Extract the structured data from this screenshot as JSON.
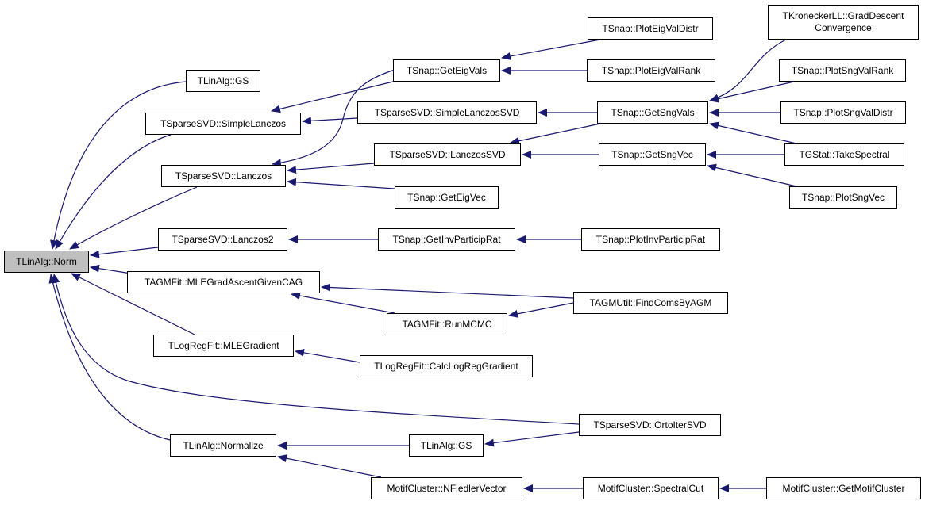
{
  "colors": {
    "edge": "#191970",
    "root_fill": "#bfbfbf",
    "node_fill": "#ffffff",
    "border": "#000000"
  },
  "nodes": [
    {
      "id": "norm",
      "label": "TLinAlg::Norm",
      "root": true
    },
    {
      "id": "gs",
      "label": "TLinAlg::GS"
    },
    {
      "id": "simplelanczos",
      "label": "TSparseSVD::SimpleLanczos"
    },
    {
      "id": "lanczos",
      "label": "TSparseSVD::Lanczos"
    },
    {
      "id": "lanczos2",
      "label": "TSparseSVD::Lanczos2"
    },
    {
      "id": "mlegagc",
      "label": "TAGMFit::MLEGradAscentGivenCAG"
    },
    {
      "id": "mlegradient",
      "label": "TLogRegFit::MLEGradient"
    },
    {
      "id": "normalize",
      "label": "TLinAlg::Normalize"
    },
    {
      "id": "geteigvals",
      "label": "TSnap::GetEigVals"
    },
    {
      "id": "simplelanczossvd",
      "label": "TSparseSVD::SimpleLanczosSVD"
    },
    {
      "id": "lanczossvd",
      "label": "TSparseSVD::LanczosSVD"
    },
    {
      "id": "geteigvec",
      "label": "TSnap::GetEigVec"
    },
    {
      "id": "getinvparticiprat",
      "label": "TSnap::GetInvParticipRat"
    },
    {
      "id": "ploteigvaldistr",
      "label": "TSnap::PlotEigValDistr"
    },
    {
      "id": "ploteigvalrank",
      "label": "TSnap::PlotEigValRank"
    },
    {
      "id": "getsngvals",
      "label": "TSnap::GetSngVals"
    },
    {
      "id": "getsngvec",
      "label": "TSnap::GetSngVec"
    },
    {
      "id": "plotinvparticiprat",
      "label": "TSnap::PlotInvParticipRat"
    },
    {
      "id": "tkronecker",
      "label": "TKroneckerLL::GradDescent\nConvergence"
    },
    {
      "id": "plotsngvalrank",
      "label": "TSnap::PlotSngValRank"
    },
    {
      "id": "plotsngvaldistr",
      "label": "TSnap::PlotSngValDistr"
    },
    {
      "id": "takespectral",
      "label": "TGStat::TakeSpectral"
    },
    {
      "id": "plotsngvec",
      "label": "TSnap::PlotSngVec"
    },
    {
      "id": "findcomsbyagm",
      "label": "TAGMUtil::FindComsByAGM"
    },
    {
      "id": "runmcmc",
      "label": "TAGMFit::RunMCMC"
    },
    {
      "id": "calclogreggradient",
      "label": "TLogRegFit::CalcLogRegGradient"
    },
    {
      "id": "ortoitersvd",
      "label": "TSparseSVD::OrtoIterSVD"
    },
    {
      "id": "gs2",
      "label": "TLinAlg::GS"
    },
    {
      "id": "nfiedlervector",
      "label": "MotifCluster::NFiedlerVector"
    },
    {
      "id": "spectralcut",
      "label": "MotifCluster::SpectralCut"
    },
    {
      "id": "getmotifcluster",
      "label": "MotifCluster::GetMotifCluster"
    }
  ],
  "edges": [
    {
      "from": "gs",
      "to": "norm"
    },
    {
      "from": "simplelanczos",
      "to": "norm"
    },
    {
      "from": "lanczos",
      "to": "norm"
    },
    {
      "from": "lanczos2",
      "to": "norm"
    },
    {
      "from": "mlegagc",
      "to": "norm"
    },
    {
      "from": "mlegradient",
      "to": "norm"
    },
    {
      "from": "ortoitersvd",
      "to": "norm"
    },
    {
      "from": "normalize",
      "to": "norm"
    },
    {
      "from": "geteigvals",
      "to": "simplelanczos"
    },
    {
      "from": "simplelanczossvd",
      "to": "simplelanczos"
    },
    {
      "from": "geteigvals",
      "to": "lanczos"
    },
    {
      "from": "lanczossvd",
      "to": "lanczos"
    },
    {
      "from": "geteigvec",
      "to": "lanczos"
    },
    {
      "from": "getinvparticiprat",
      "to": "lanczos2"
    },
    {
      "from": "findcomsbyagm",
      "to": "mlegagc"
    },
    {
      "from": "runmcmc",
      "to": "mlegagc"
    },
    {
      "from": "calclogreggradient",
      "to": "mlegradient"
    },
    {
      "from": "gs2",
      "to": "normalize"
    },
    {
      "from": "nfiedlervector",
      "to": "normalize"
    },
    {
      "from": "ploteigvaldistr",
      "to": "geteigvals"
    },
    {
      "from": "ploteigvalrank",
      "to": "geteigvals"
    },
    {
      "from": "getsngvals",
      "to": "simplelanczossvd"
    },
    {
      "from": "getsngvals",
      "to": "lanczossvd"
    },
    {
      "from": "getsngvec",
      "to": "lanczossvd"
    },
    {
      "from": "tkronecker",
      "to": "getsngvals"
    },
    {
      "from": "plotsngvalrank",
      "to": "getsngvals"
    },
    {
      "from": "plotsngvaldistr",
      "to": "getsngvals"
    },
    {
      "from": "takespectral",
      "to": "getsngvals"
    },
    {
      "from": "takespectral",
      "to": "getsngvec"
    },
    {
      "from": "plotsngvec",
      "to": "getsngvec"
    },
    {
      "from": "plotinvparticiprat",
      "to": "getinvparticiprat"
    },
    {
      "from": "findcomsbyagm",
      "to": "runmcmc"
    },
    {
      "from": "ortoitersvd",
      "to": "gs2"
    },
    {
      "from": "spectralcut",
      "to": "nfiedlervector"
    },
    {
      "from": "getmotifcluster",
      "to": "spectralcut"
    }
  ]
}
